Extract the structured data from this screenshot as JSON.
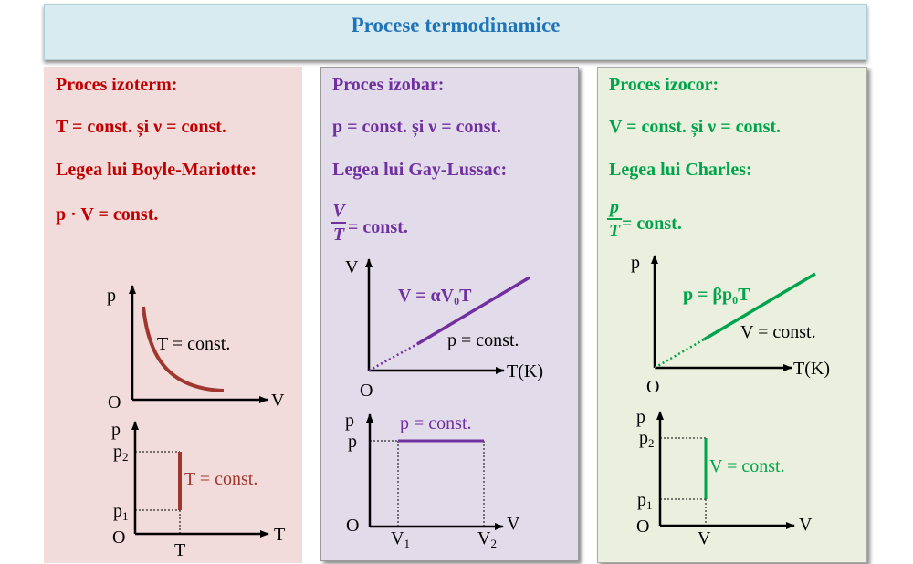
{
  "title": "Procese termodinamice",
  "colors": {
    "red": "#c00000",
    "purple": "#7030a0",
    "green": "#00a44c",
    "curve_red": "#a0372e"
  },
  "izoterm": {
    "heading": "Proces izoterm:",
    "condition": "T = const. și ν = const.",
    "law": "Legea lui Boyle-Mariotte:",
    "formula": "p · V = const.",
    "g1": {
      "y_axis": "p",
      "x_axis": "V",
      "origin": "O",
      "curve_label": "T = const."
    },
    "g2": {
      "y_axis": "p",
      "x_axis": "T",
      "origin": "O",
      "p2": "p",
      "p2_sub": "2",
      "p1": "p",
      "p1_sub": "1",
      "t_tick": "T",
      "line_label": "T = const."
    }
  },
  "izobar": {
    "heading": "Proces izobar:",
    "condition": "p = const. și ν = const.",
    "law": "Legea lui Gay-Lussac:",
    "frac_num": "V",
    "frac_den": "T",
    "formula_rest": "= const.",
    "g1": {
      "y_axis": "V",
      "x_axis": "T(K)",
      "origin": "O",
      "line_label": "V = αV₀T",
      "const_label": "p = const."
    },
    "g2": {
      "y_axis": "p",
      "x_axis": "V",
      "origin": "O",
      "p_tick": "p",
      "v1": "V",
      "v1_sub": "1",
      "v2": "V",
      "v2_sub": "2",
      "line_label": "p = const."
    }
  },
  "izocor": {
    "heading": "Proces izocor:",
    "condition": "V = const. și ν = const.",
    "law": "Legea lui Charles:",
    "frac_num": "p",
    "frac_den": "T",
    "formula_rest": "= const.",
    "g1": {
      "y_axis": "p",
      "x_axis": "T(K)",
      "origin": "O",
      "line_label": "p = βp₀T",
      "const_label": "V = const."
    },
    "g2": {
      "y_axis": "p",
      "x_axis": "V",
      "origin": "O",
      "p2": "p",
      "p2_sub": "2",
      "p1": "p",
      "p1_sub": "1",
      "v_tick": "V",
      "line_label": "V = const."
    }
  }
}
